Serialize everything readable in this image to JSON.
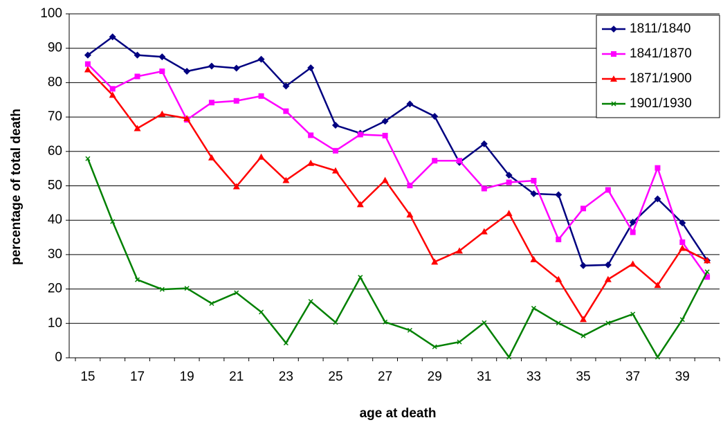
{
  "chart_data": {
    "type": "line",
    "x_label": "age at death",
    "y_label": "percentage of total death",
    "categories": [
      "15",
      null,
      "17",
      null,
      "19",
      null,
      "21",
      null,
      "23",
      null,
      "25",
      null,
      "27",
      null,
      "29",
      null,
      "31",
      null,
      "33",
      null,
      "35",
      null,
      "37",
      null,
      "39",
      null
    ],
    "ylim": [
      0,
      100
    ],
    "yticks": [
      0,
      10,
      20,
      30,
      40,
      50,
      60,
      70,
      80,
      90,
      100
    ],
    "grid": true,
    "legend": "top-right",
    "series": [
      {
        "name": "1811/1840",
        "color": "#000080",
        "marker": "diamond",
        "values": [
          88,
          93.3,
          88,
          87.5,
          83.3,
          84.8,
          84.2,
          86.8,
          79,
          84.3,
          67.6,
          65.3,
          68.8,
          73.8,
          70.2,
          56.8,
          62.2,
          53.1,
          47.7,
          47.4,
          26.8,
          27,
          39.4,
          46.2,
          39.2,
          28.3
        ]
      },
      {
        "name": "1841/1870",
        "color": "#ff00ff",
        "marker": "square",
        "values": [
          85.4,
          78.2,
          81.8,
          83.3,
          69.2,
          74.2,
          74.7,
          76.1,
          71.7,
          64.7,
          60.2,
          64.9,
          64.6,
          50.1,
          57.3,
          57.3,
          49.2,
          51,
          51.5,
          34.4,
          43.4,
          48.8,
          36.5,
          55.2,
          33.6,
          23.5
        ]
      },
      {
        "name": "1871/1900",
        "color": "#ff0000",
        "marker": "triangle",
        "values": [
          83.8,
          76.4,
          66.7,
          70.9,
          69.6,
          58.2,
          49.8,
          58.4,
          51.6,
          56.6,
          54.4,
          44.6,
          51.6,
          41.6,
          27.9,
          31.1,
          36.7,
          42,
          28.6,
          22.8,
          11.2,
          22.8,
          27.3,
          21.1,
          31.9,
          28.3
        ]
      },
      {
        "name": "1901/1930",
        "color": "#008000",
        "marker": "x",
        "values": [
          57.9,
          39.6,
          22.7,
          19.9,
          20.2,
          15.8,
          18.9,
          13.3,
          4.3,
          16.4,
          10.3,
          23.4,
          10.4,
          8,
          3.2,
          4.6,
          10.2,
          0.2,
          14.4,
          10.1,
          6.4,
          10.1,
          12.7,
          0.2,
          11.1,
          25
        ]
      }
    ]
  }
}
